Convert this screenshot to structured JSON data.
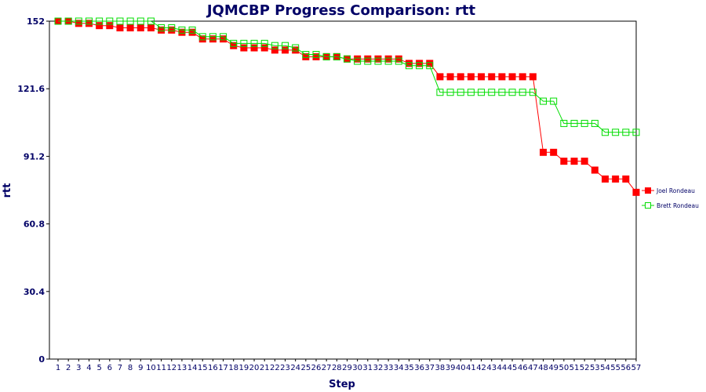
{
  "chart_data": {
    "type": "line",
    "title": "JQMCBP Progress Comparison: rtt",
    "xlabel": "Step",
    "ylabel": "rtt",
    "ylim": [
      0,
      152
    ],
    "yticks": [
      "0",
      "30.4",
      "60.8",
      "91.2",
      "121.6",
      "152"
    ],
    "ytick_values": [
      0,
      30.4,
      60.8,
      91.2,
      121.6,
      152
    ],
    "categories": [
      "1",
      "2",
      "3",
      "4",
      "5",
      "6",
      "7",
      "8",
      "9",
      "10",
      "11",
      "12",
      "13",
      "14",
      "15",
      "16",
      "17",
      "18",
      "19",
      "20",
      "21",
      "22",
      "23",
      "24",
      "25",
      "26",
      "27",
      "28",
      "29",
      "30",
      "31",
      "32",
      "33",
      "34",
      "35",
      "36",
      "37",
      "38",
      "39",
      "40",
      "41",
      "42",
      "43",
      "44",
      "45",
      "46",
      "47",
      "48",
      "49",
      "50",
      "51",
      "52",
      "53",
      "54",
      "55",
      "56",
      "57"
    ],
    "legend_position": "right",
    "series": [
      {
        "name": "Joel Rondeau",
        "color": "#ff0000",
        "marker": "filled-square",
        "values": [
          152,
          152,
          151,
          151,
          150,
          150,
          149,
          149,
          149,
          149,
          148,
          148,
          147,
          147,
          144,
          144,
          144,
          141,
          140,
          140,
          140,
          139,
          139,
          139,
          136,
          136,
          136,
          136,
          135,
          135,
          135,
          135,
          135,
          135,
          133,
          133,
          133,
          127,
          127,
          127,
          127,
          127,
          127,
          127,
          127,
          127,
          127,
          93,
          93,
          89,
          89,
          89,
          85,
          81,
          81,
          81,
          75
        ]
      },
      {
        "name": "Brett Rondeau",
        "color": "#00dd00",
        "marker": "hollow-square",
        "values": [
          152,
          152,
          152,
          152,
          152,
          152,
          152,
          152,
          152,
          152,
          149,
          149,
          148,
          148,
          145,
          145,
          145,
          142,
          142,
          142,
          142,
          141,
          141,
          140,
          137,
          137,
          136,
          136,
          135,
          134,
          134,
          134,
          134,
          134,
          132,
          132,
          132,
          120,
          120,
          120,
          120,
          120,
          120,
          120,
          120,
          120,
          120,
          116,
          116,
          106,
          106,
          106,
          106,
          102,
          102,
          102,
          102
        ]
      }
    ]
  }
}
